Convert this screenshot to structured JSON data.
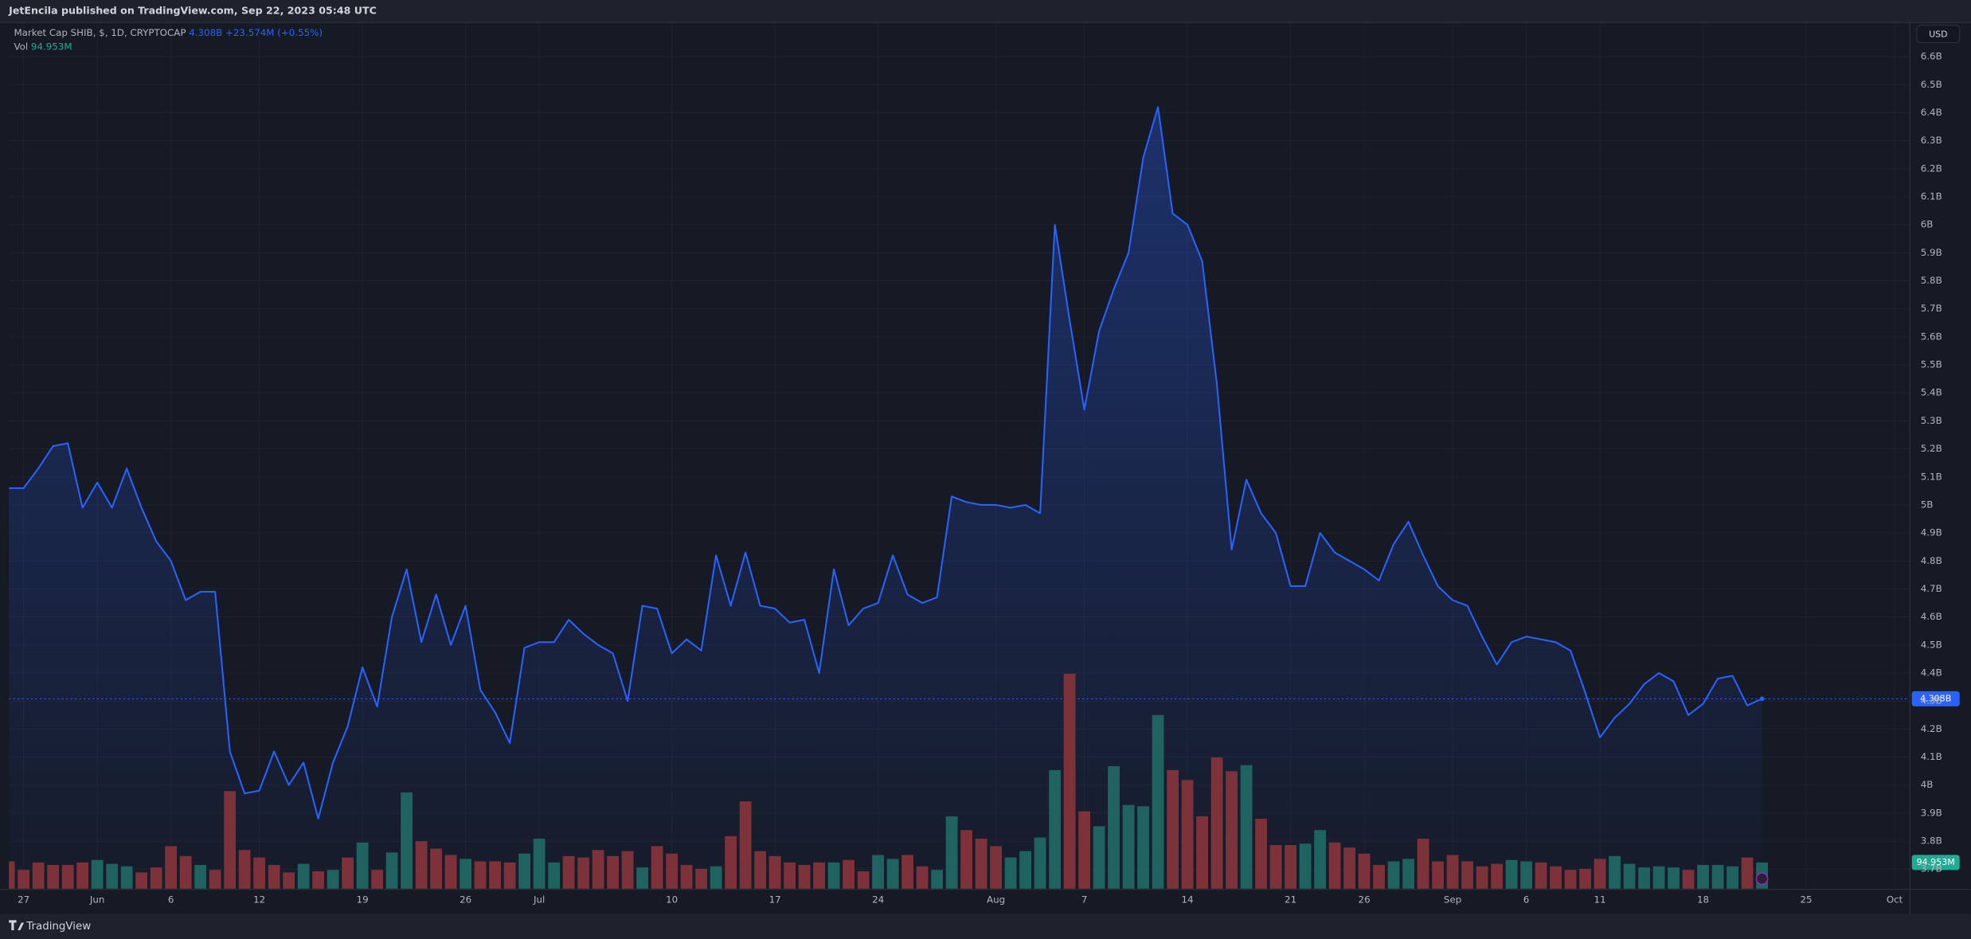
{
  "header": "JetEncila published on TradingView.com, Sep 22, 2023 05:48 UTC",
  "footer_brand": "TradingView",
  "chart_data": {
    "type": "line",
    "legend": {
      "symbol": "Market Cap SHIB, $, 1D, CRYPTOCAP",
      "last": "4.308B",
      "change": "+23.574M (+0.55%)",
      "volume_label": "Vol",
      "volume": "94.953M"
    },
    "currency": "USD",
    "x": [
      "05-26",
      "05-27",
      "05-28",
      "05-29",
      "05-30",
      "05-31",
      "06-01",
      "06-02",
      "06-03",
      "06-04",
      "06-05",
      "06-06",
      "06-07",
      "06-08",
      "06-09",
      "06-10",
      "06-11",
      "06-12",
      "06-13",
      "06-14",
      "06-15",
      "06-16",
      "06-17",
      "06-18",
      "06-19",
      "06-20",
      "06-21",
      "06-22",
      "06-23",
      "06-24",
      "06-25",
      "06-26",
      "06-27",
      "06-28",
      "06-29",
      "06-30",
      "07-01",
      "07-02",
      "07-03",
      "07-04",
      "07-05",
      "07-06",
      "07-07",
      "07-08",
      "07-09",
      "07-10",
      "07-11",
      "07-12",
      "07-13",
      "07-14",
      "07-15",
      "07-16",
      "07-17",
      "07-18",
      "07-19",
      "07-20",
      "07-21",
      "07-22",
      "07-23",
      "07-24",
      "07-25",
      "07-26",
      "07-27",
      "07-28",
      "07-29",
      "07-30",
      "07-31",
      "08-01",
      "08-02",
      "08-03",
      "08-04",
      "08-05",
      "08-06",
      "08-07",
      "08-08",
      "08-09",
      "08-10",
      "08-11",
      "08-12",
      "08-13",
      "08-14",
      "08-15",
      "08-16",
      "08-17",
      "08-18",
      "08-19",
      "08-20",
      "08-21",
      "08-22",
      "08-23",
      "08-24",
      "08-25",
      "08-26",
      "08-27",
      "08-28",
      "08-29",
      "08-30",
      "08-31",
      "09-01",
      "09-02",
      "09-03",
      "09-04",
      "09-05",
      "09-06",
      "09-07",
      "09-08",
      "09-09",
      "09-10",
      "09-11",
      "09-12",
      "09-13",
      "09-14",
      "09-15",
      "09-16",
      "09-17",
      "09-18",
      "09-19",
      "09-20",
      "09-21",
      "09-22"
    ],
    "series": [
      {
        "type": "line",
        "color": "#2962ff",
        "values": [
          5.06,
          5.06,
          5.13,
          5.21,
          5.22,
          4.99,
          5.08,
          4.99,
          5.13,
          4.99,
          4.87,
          4.8,
          4.66,
          4.69,
          4.69,
          4.12,
          3.97,
          3.98,
          4.12,
          4.0,
          4.08,
          3.88,
          4.08,
          4.21,
          4.42,
          4.28,
          4.6,
          4.77,
          4.51,
          4.68,
          4.5,
          4.64,
          4.34,
          4.26,
          4.15,
          4.49,
          4.51,
          4.51,
          4.59,
          4.54,
          4.5,
          4.47,
          4.3,
          4.64,
          4.63,
          4.47,
          4.52,
          4.48,
          4.82,
          4.64,
          4.83,
          4.64,
          4.63,
          4.58,
          4.59,
          4.4,
          4.77,
          4.57,
          4.63,
          4.65,
          4.82,
          4.68,
          4.65,
          4.67,
          5.03,
          5.01,
          5.0,
          5.0,
          4.99,
          5.0,
          4.97,
          6.0,
          5.66,
          5.34,
          5.62,
          5.77,
          5.9,
          6.24,
          6.42,
          6.04,
          6.0,
          5.87,
          5.43,
          4.84,
          5.09,
          4.97,
          4.9,
          4.71,
          4.71,
          4.9,
          4.83,
          4.8,
          4.77,
          4.73,
          4.86,
          4.94,
          4.82,
          4.71,
          4.66,
          4.64,
          4.53,
          4.43,
          4.51,
          4.53,
          4.52,
          4.51,
          4.48,
          4.33,
          4.17,
          4.24,
          4.29,
          4.36,
          4.4,
          4.37,
          4.25,
          4.29,
          4.38,
          4.39,
          4.284,
          4.308
        ]
      },
      {
        "type": "bar",
        "axis": "y2",
        "values": [
          99,
          68,
          95,
          86,
          86,
          95,
          104,
          90,
          81,
          59,
          77,
          154,
          118,
          86,
          68,
          353,
          140,
          113,
          86,
          59,
          90,
          63,
          68,
          113,
          167,
          68,
          131,
          348,
          172,
          145,
          122,
          108,
          99,
          99,
          95,
          127,
          181,
          95,
          118,
          113,
          140,
          118,
          136,
          77,
          154,
          127,
          86,
          72,
          81,
          190,
          316,
          136,
          118,
          95,
          86,
          95,
          95,
          104,
          63,
          122,
          108,
          122,
          81,
          68,
          262,
          212,
          181,
          154,
          113,
          136,
          185,
          429,
          777,
          280,
          226,
          443,
          303,
          298,
          628,
          429,
          393,
          262,
          475,
          425,
          447,
          253,
          158,
          158,
          163,
          212,
          167,
          149,
          127,
          86,
          99,
          108,
          181,
          99,
          122,
          99,
          81,
          90,
          104,
          99,
          95,
          81,
          68,
          72,
          108,
          118,
          90,
          77,
          81,
          77,
          68,
          86,
          86,
          81,
          113,
          94.953
        ],
        "colors": [
          "#7d3138",
          "#7d3138",
          "#7d3138",
          "#7d3138",
          "#7d3138",
          "#7d3138",
          "#1f6360",
          "#1f6360",
          "#1f6360",
          "#7d3138",
          "#7d3138",
          "#7d3138",
          "#7d3138",
          "#1f6360",
          "#7d3138",
          "#7d3138",
          "#7d3138",
          "#7d3138",
          "#7d3138",
          "#7d3138",
          "#1f6360",
          "#7d3138",
          "#1f6360",
          "#7d3138",
          "#1f6360",
          "#7d3138",
          "#1f6360",
          "#1f6360",
          "#7d3138",
          "#7d3138",
          "#7d3138",
          "#1f6360",
          "#7d3138",
          "#7d3138",
          "#7d3138",
          "#1f6360",
          "#1f6360",
          "#1f6360",
          "#7d3138",
          "#7d3138",
          "#7d3138",
          "#7d3138",
          "#7d3138",
          "#1f6360",
          "#7d3138",
          "#7d3138",
          "#7d3138",
          "#7d3138",
          "#1f6360",
          "#7d3138",
          "#7d3138",
          "#7d3138",
          "#7d3138",
          "#7d3138",
          "#7d3138",
          "#7d3138",
          "#1f6360",
          "#7d3138",
          "#7d3138",
          "#1f6360",
          "#1f6360",
          "#7d3138",
          "#7d3138",
          "#1f6360",
          "#1f6360",
          "#7d3138",
          "#7d3138",
          "#7d3138",
          "#1f6360",
          "#1f6360",
          "#1f6360",
          "#1f6360",
          "#7d3138",
          "#7d3138",
          "#1f6360",
          "#1f6360",
          "#1f6360",
          "#1f6360",
          "#1f6360",
          "#7d3138",
          "#7d3138",
          "#7d3138",
          "#7d3138",
          "#7d3138",
          "#1f6360",
          "#7d3138",
          "#7d3138",
          "#7d3138",
          "#1f6360",
          "#1f6360",
          "#7d3138",
          "#7d3138",
          "#7d3138",
          "#7d3138",
          "#1f6360",
          "#1f6360",
          "#7d3138",
          "#7d3138",
          "#7d3138",
          "#7d3138",
          "#7d3138",
          "#7d3138",
          "#1f6360",
          "#1f6360",
          "#7d3138",
          "#7d3138",
          "#7d3138",
          "#7d3138",
          "#7d3138",
          "#1f6360",
          "#1f6360",
          "#1f6360",
          "#1f6360",
          "#1f6360",
          "#7d3138",
          "#1f6360",
          "#1f6360",
          "#1f6360",
          "#7d3138",
          "#1f6360"
        ]
      }
    ],
    "xlim": [
      "05-26",
      "10-02"
    ],
    "xticks": [
      {
        "value": "05-27",
        "label": "27"
      },
      {
        "value": "06-01",
        "label": "Jun"
      },
      {
        "value": "06-06",
        "label": "6"
      },
      {
        "value": "06-12",
        "label": "12"
      },
      {
        "value": "06-19",
        "label": "19"
      },
      {
        "value": "06-26",
        "label": "26"
      },
      {
        "value": "07-01",
        "label": "Jul"
      },
      {
        "value": "07-10",
        "label": "10"
      },
      {
        "value": "07-17",
        "label": "17"
      },
      {
        "value": "07-24",
        "label": "24"
      },
      {
        "value": "08-01",
        "label": "Aug"
      },
      {
        "value": "08-07",
        "label": "7"
      },
      {
        "value": "08-14",
        "label": "14"
      },
      {
        "value": "08-21",
        "label": "21"
      },
      {
        "value": "08-26",
        "label": "26"
      },
      {
        "value": "09-01",
        "label": "Sep"
      },
      {
        "value": "09-06",
        "label": "6"
      },
      {
        "value": "09-11",
        "label": "11"
      },
      {
        "value": "09-18",
        "label": "18"
      },
      {
        "value": "09-25",
        "label": "25"
      },
      {
        "value": "10-01",
        "label": "Oct"
      }
    ],
    "ylim": [
      3.63,
      6.69
    ],
    "yticks": [
      {
        "value": 3.7,
        "label": "3.7B"
      },
      {
        "value": 3.8,
        "label": "3.8B"
      },
      {
        "value": 3.9,
        "label": "3.9B"
      },
      {
        "value": 4,
        "label": "4B"
      },
      {
        "value": 4.1,
        "label": "4.1B"
      },
      {
        "value": 4.2,
        "label": "4.2B"
      },
      {
        "value": 4.3,
        "label": "4.3B"
      },
      {
        "value": 4.4,
        "label": "4.4B"
      },
      {
        "value": 4.5,
        "label": "4.5B"
      },
      {
        "value": 4.6,
        "label": "4.6B"
      },
      {
        "value": 4.7,
        "label": "4.7B"
      },
      {
        "value": 4.8,
        "label": "4.8B"
      },
      {
        "value": 4.9,
        "label": "4.9B"
      },
      {
        "value": 5,
        "label": "5B"
      },
      {
        "value": 5.1,
        "label": "5.1B"
      },
      {
        "value": 5.2,
        "label": "5.2B"
      },
      {
        "value": 5.3,
        "label": "5.3B"
      },
      {
        "value": 5.4,
        "label": "5.4B"
      },
      {
        "value": 5.5,
        "label": "5.5B"
      },
      {
        "value": 5.6,
        "label": "5.6B"
      },
      {
        "value": 5.7,
        "label": "5.7B"
      },
      {
        "value": 5.8,
        "label": "5.8B"
      },
      {
        "value": 5.9,
        "label": "5.9B"
      },
      {
        "value": 6,
        "label": "6B"
      },
      {
        "value": 6.1,
        "label": "6.1B"
      },
      {
        "value": 6.2,
        "label": "6.2B"
      },
      {
        "value": 6.3,
        "label": "6.3B"
      },
      {
        "value": 6.4,
        "label": "6.4B"
      },
      {
        "value": 6.5,
        "label": "6.5B"
      },
      {
        "value": 6.6,
        "label": "6.6B"
      }
    ],
    "y2lim": [
      0,
      3100
    ],
    "grid": true
  }
}
